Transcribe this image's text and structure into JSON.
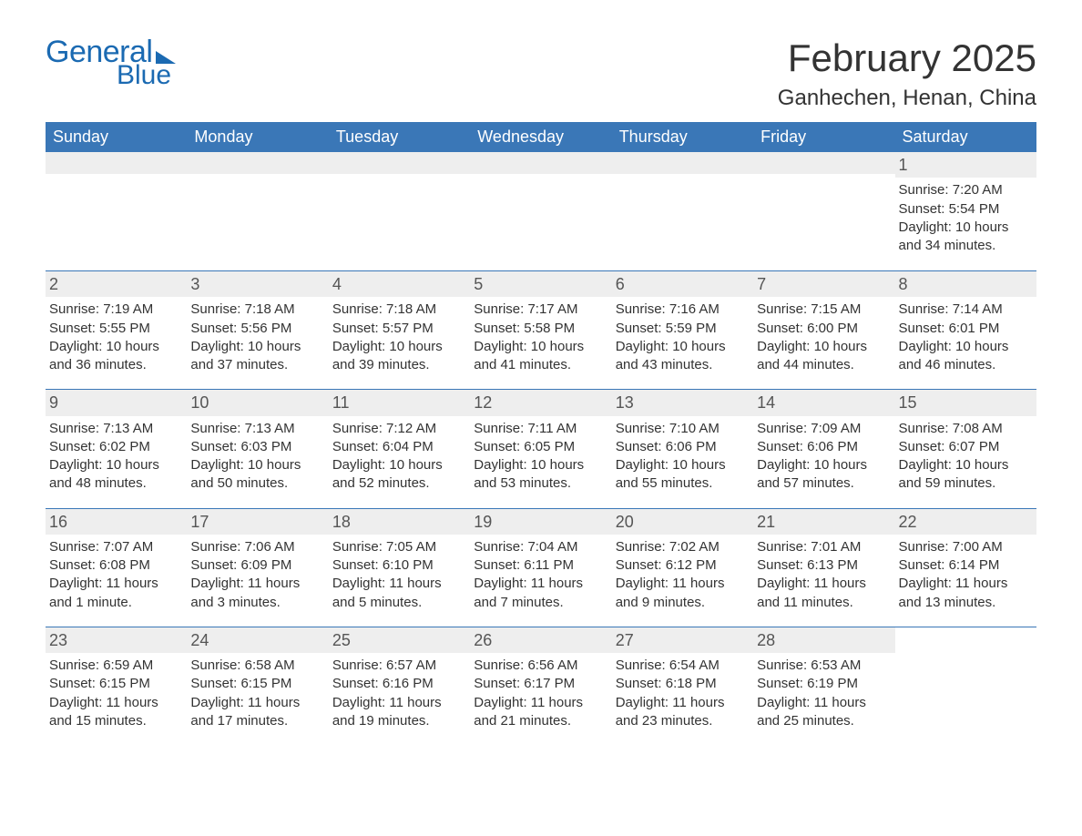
{
  "brand": {
    "line1": "General",
    "line2": "Blue"
  },
  "title": "February 2025",
  "location": "Ganhechen, Henan, China",
  "colors": {
    "brand_blue": "#1b6ab2",
    "header_blue": "#3a77b7",
    "row_divider": "#3a77b7",
    "daynum_bg": "#eeeeee",
    "text": "#333333",
    "bg": "#ffffff"
  },
  "typography": {
    "title_fontsize": 42,
    "location_fontsize": 24,
    "dayheader_fontsize": 18,
    "daynum_fontsize": 18,
    "body_fontsize": 15
  },
  "day_headers": [
    "Sunday",
    "Monday",
    "Tuesday",
    "Wednesday",
    "Thursday",
    "Friday",
    "Saturday"
  ],
  "weeks": [
    [
      {
        "empty": true
      },
      {
        "empty": true
      },
      {
        "empty": true
      },
      {
        "empty": true
      },
      {
        "empty": true
      },
      {
        "empty": true
      },
      {
        "day": "1",
        "sunrise": "Sunrise: 7:20 AM",
        "sunset": "Sunset: 5:54 PM",
        "daylight": "Daylight: 10 hours and 34 minutes."
      }
    ],
    [
      {
        "day": "2",
        "sunrise": "Sunrise: 7:19 AM",
        "sunset": "Sunset: 5:55 PM",
        "daylight": "Daylight: 10 hours and 36 minutes."
      },
      {
        "day": "3",
        "sunrise": "Sunrise: 7:18 AM",
        "sunset": "Sunset: 5:56 PM",
        "daylight": "Daylight: 10 hours and 37 minutes."
      },
      {
        "day": "4",
        "sunrise": "Sunrise: 7:18 AM",
        "sunset": "Sunset: 5:57 PM",
        "daylight": "Daylight: 10 hours and 39 minutes."
      },
      {
        "day": "5",
        "sunrise": "Sunrise: 7:17 AM",
        "sunset": "Sunset: 5:58 PM",
        "daylight": "Daylight: 10 hours and 41 minutes."
      },
      {
        "day": "6",
        "sunrise": "Sunrise: 7:16 AM",
        "sunset": "Sunset: 5:59 PM",
        "daylight": "Daylight: 10 hours and 43 minutes."
      },
      {
        "day": "7",
        "sunrise": "Sunrise: 7:15 AM",
        "sunset": "Sunset: 6:00 PM",
        "daylight": "Daylight: 10 hours and 44 minutes."
      },
      {
        "day": "8",
        "sunrise": "Sunrise: 7:14 AM",
        "sunset": "Sunset: 6:01 PM",
        "daylight": "Daylight: 10 hours and 46 minutes."
      }
    ],
    [
      {
        "day": "9",
        "sunrise": "Sunrise: 7:13 AM",
        "sunset": "Sunset: 6:02 PM",
        "daylight": "Daylight: 10 hours and 48 minutes."
      },
      {
        "day": "10",
        "sunrise": "Sunrise: 7:13 AM",
        "sunset": "Sunset: 6:03 PM",
        "daylight": "Daylight: 10 hours and 50 minutes."
      },
      {
        "day": "11",
        "sunrise": "Sunrise: 7:12 AM",
        "sunset": "Sunset: 6:04 PM",
        "daylight": "Daylight: 10 hours and 52 minutes."
      },
      {
        "day": "12",
        "sunrise": "Sunrise: 7:11 AM",
        "sunset": "Sunset: 6:05 PM",
        "daylight": "Daylight: 10 hours and 53 minutes."
      },
      {
        "day": "13",
        "sunrise": "Sunrise: 7:10 AM",
        "sunset": "Sunset: 6:06 PM",
        "daylight": "Daylight: 10 hours and 55 minutes."
      },
      {
        "day": "14",
        "sunrise": "Sunrise: 7:09 AM",
        "sunset": "Sunset: 6:06 PM",
        "daylight": "Daylight: 10 hours and 57 minutes."
      },
      {
        "day": "15",
        "sunrise": "Sunrise: 7:08 AM",
        "sunset": "Sunset: 6:07 PM",
        "daylight": "Daylight: 10 hours and 59 minutes."
      }
    ],
    [
      {
        "day": "16",
        "sunrise": "Sunrise: 7:07 AM",
        "sunset": "Sunset: 6:08 PM",
        "daylight": "Daylight: 11 hours and 1 minute."
      },
      {
        "day": "17",
        "sunrise": "Sunrise: 7:06 AM",
        "sunset": "Sunset: 6:09 PM",
        "daylight": "Daylight: 11 hours and 3 minutes."
      },
      {
        "day": "18",
        "sunrise": "Sunrise: 7:05 AM",
        "sunset": "Sunset: 6:10 PM",
        "daylight": "Daylight: 11 hours and 5 minutes."
      },
      {
        "day": "19",
        "sunrise": "Sunrise: 7:04 AM",
        "sunset": "Sunset: 6:11 PM",
        "daylight": "Daylight: 11 hours and 7 minutes."
      },
      {
        "day": "20",
        "sunrise": "Sunrise: 7:02 AM",
        "sunset": "Sunset: 6:12 PM",
        "daylight": "Daylight: 11 hours and 9 minutes."
      },
      {
        "day": "21",
        "sunrise": "Sunrise: 7:01 AM",
        "sunset": "Sunset: 6:13 PM",
        "daylight": "Daylight: 11 hours and 11 minutes."
      },
      {
        "day": "22",
        "sunrise": "Sunrise: 7:00 AM",
        "sunset": "Sunset: 6:14 PM",
        "daylight": "Daylight: 11 hours and 13 minutes."
      }
    ],
    [
      {
        "day": "23",
        "sunrise": "Sunrise: 6:59 AM",
        "sunset": "Sunset: 6:15 PM",
        "daylight": "Daylight: 11 hours and 15 minutes."
      },
      {
        "day": "24",
        "sunrise": "Sunrise: 6:58 AM",
        "sunset": "Sunset: 6:15 PM",
        "daylight": "Daylight: 11 hours and 17 minutes."
      },
      {
        "day": "25",
        "sunrise": "Sunrise: 6:57 AM",
        "sunset": "Sunset: 6:16 PM",
        "daylight": "Daylight: 11 hours and 19 minutes."
      },
      {
        "day": "26",
        "sunrise": "Sunrise: 6:56 AM",
        "sunset": "Sunset: 6:17 PM",
        "daylight": "Daylight: 11 hours and 21 minutes."
      },
      {
        "day": "27",
        "sunrise": "Sunrise: 6:54 AM",
        "sunset": "Sunset: 6:18 PM",
        "daylight": "Daylight: 11 hours and 23 minutes."
      },
      {
        "day": "28",
        "sunrise": "Sunrise: 6:53 AM",
        "sunset": "Sunset: 6:19 PM",
        "daylight": "Daylight: 11 hours and 25 minutes."
      },
      {
        "empty": true,
        "nobar": true
      }
    ]
  ]
}
